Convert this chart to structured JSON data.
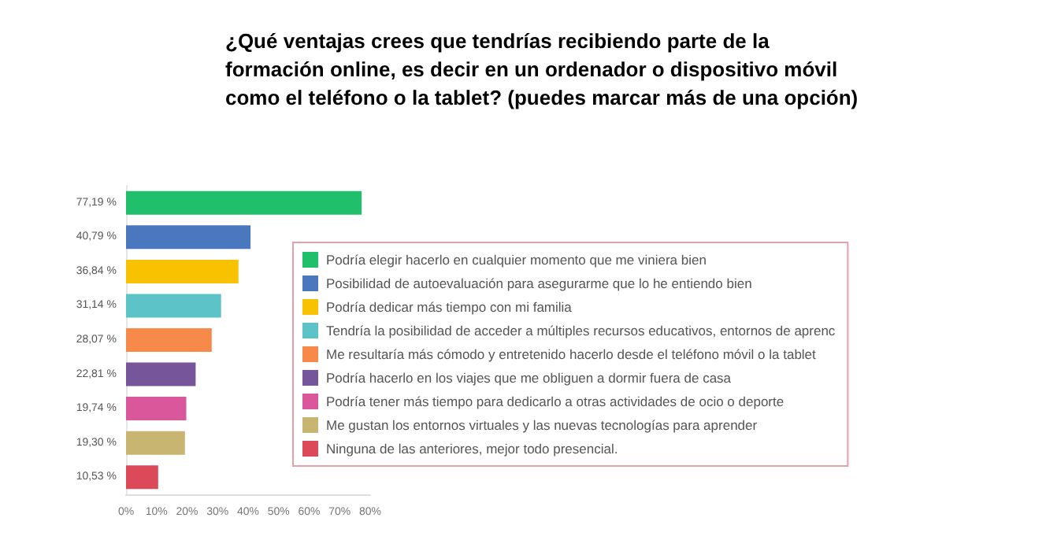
{
  "chart_data": {
    "type": "bar",
    "orientation": "horizontal",
    "title": "¿Qué ventajas crees que tendrías recibiendo parte de la formación online, es decir en un ordenador o dispositivo móvil como el teléfono o la tablet? (puedes marcar más de una opción)",
    "categories": [
      null,
      null,
      null,
      null,
      null,
      null,
      null,
      null,
      null
    ],
    "series": [
      {
        "name": "Podría elegir hacerlo en cualquier momento que me viniera bien",
        "color": "#1fbf6b",
        "values": [
          77.19,
          null,
          null,
          null,
          null,
          null,
          null,
          null,
          null
        ],
        "value_labels": [
          "77,19 %",
          null,
          null,
          null,
          null,
          null,
          null,
          null,
          null
        ]
      },
      {
        "name": "Posibilidad de autoevaluación para asegurarme que lo he entiendo bien",
        "color": "#4a77bd",
        "values": [
          null,
          40.79,
          null,
          null,
          null,
          null,
          null,
          null,
          null
        ],
        "value_labels": [
          null,
          "40,79 %",
          null,
          null,
          null,
          null,
          null,
          null,
          null
        ]
      },
      {
        "name": "Podría dedicar más tiempo con mi familia",
        "color": "#f8c200",
        "values": [
          null,
          null,
          36.84,
          null,
          null,
          null,
          null,
          null,
          null
        ],
        "value_labels": [
          null,
          null,
          "36,84 %",
          null,
          null,
          null,
          null,
          null,
          null
        ]
      },
      {
        "name": "Tendría la posibilidad de acceder a múltiples recursos educativos, entornos de aprenc",
        "color": "#5cc3c9",
        "values": [
          null,
          null,
          null,
          31.14,
          null,
          null,
          null,
          null,
          null
        ],
        "value_labels": [
          null,
          null,
          null,
          "31,14 %",
          null,
          null,
          null,
          null,
          null
        ]
      },
      {
        "name": "Me resultaría más cómodo y entretenido hacerlo desde el teléfono móvil o la tablet",
        "color": "#f7894a",
        "values": [
          null,
          null,
          null,
          null,
          28.07,
          null,
          null,
          null,
          null
        ],
        "value_labels": [
          null,
          null,
          null,
          null,
          "28,07 %",
          null,
          null,
          null,
          null
        ]
      },
      {
        "name": "Podría hacerlo en los viajes que me obliguen a dormir fuera de casa",
        "color": "#76559a",
        "values": [
          null,
          null,
          null,
          null,
          null,
          22.81,
          null,
          null,
          null
        ],
        "value_labels": [
          null,
          null,
          null,
          null,
          null,
          "22,81 %",
          null,
          null,
          null
        ]
      },
      {
        "name": "Podría tener más tiempo para dedicarlo a otras actividades de ocio o deporte",
        "color": "#d9579a",
        "values": [
          null,
          null,
          null,
          null,
          null,
          null,
          19.74,
          null,
          null
        ],
        "value_labels": [
          null,
          null,
          null,
          null,
          null,
          null,
          "19,74 %",
          null,
          null
        ]
      },
      {
        "name": "Me gustan los entornos virtuales y las nuevas tecnologías para aprender",
        "color": "#c9b572",
        "values": [
          null,
          null,
          null,
          null,
          null,
          null,
          null,
          19.3,
          null
        ],
        "value_labels": [
          null,
          null,
          null,
          null,
          null,
          null,
          null,
          "19,30 %",
          null
        ]
      },
      {
        "name": "Ninguna de las anteriores, mejor todo presencial.",
        "color": "#dc4a5a",
        "values": [
          null,
          null,
          null,
          null,
          null,
          null,
          null,
          null,
          10.53
        ],
        "value_labels": [
          null,
          null,
          null,
          null,
          null,
          null,
          null,
          null,
          "10,53 %"
        ]
      }
    ],
    "xlim": [
      0,
      80
    ],
    "xticks": [
      {
        "value": 0,
        "label": "0%"
      },
      {
        "value": 10,
        "label": "10%"
      },
      {
        "value": 20,
        "label": "20%"
      },
      {
        "value": 30,
        "label": "30%"
      },
      {
        "value": 40,
        "label": "40%"
      },
      {
        "value": 50,
        "label": "50%"
      },
      {
        "value": 60,
        "label": "60%"
      },
      {
        "value": 70,
        "label": "70%"
      },
      {
        "value": 80,
        "label": "80%"
      }
    ],
    "legend": "right"
  }
}
